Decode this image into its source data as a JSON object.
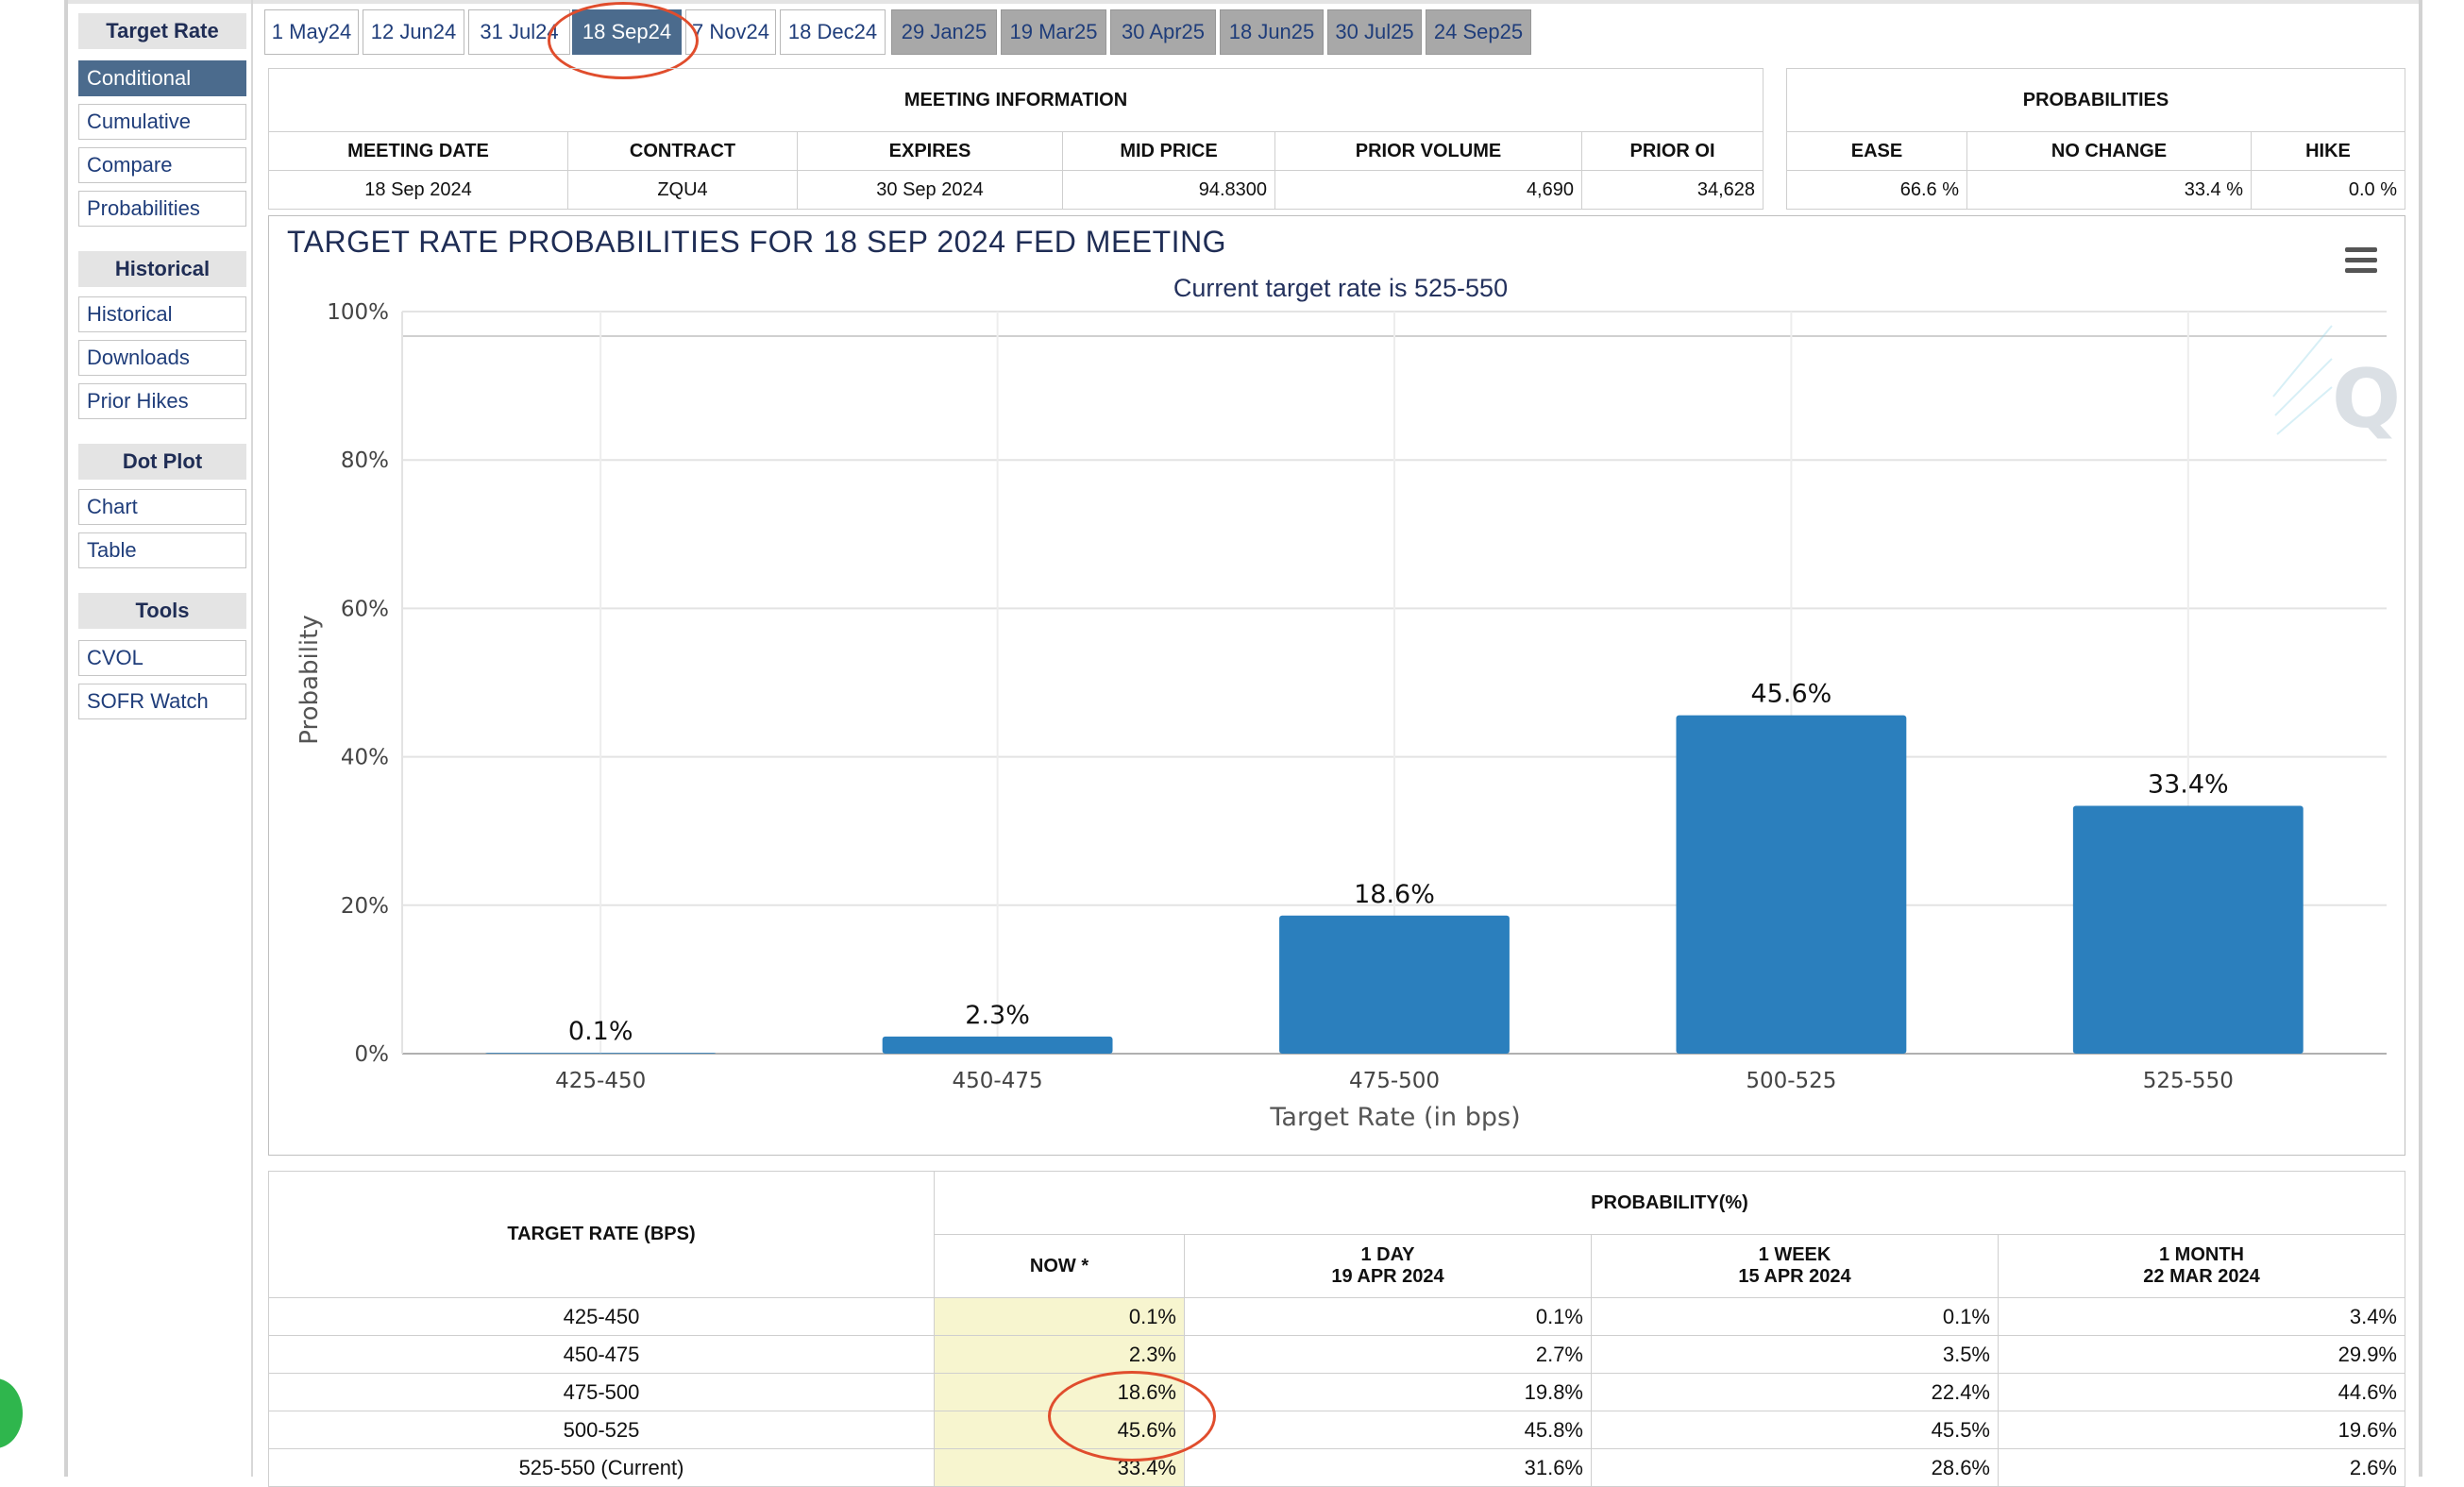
{
  "sidebar": {
    "sections": [
      {
        "title": "Target Rate",
        "items": [
          "Conditional",
          "Cumulative",
          "Compare",
          "Probabilities"
        ]
      },
      {
        "title": "Historical",
        "items": [
          "Historical",
          "Downloads",
          "Prior Hikes"
        ]
      },
      {
        "title": "Dot Plot",
        "items": [
          "Chart",
          "Table"
        ]
      },
      {
        "title": "Tools",
        "items": [
          "CVOL",
          "SOFR Watch"
        ]
      }
    ],
    "active_item": "Conditional"
  },
  "tabs": [
    "1 May24",
    "12 Jun24",
    "31 Jul24",
    "18 Sep24",
    "7 Nov24",
    "18 Dec24",
    "29 Jan25",
    "19 Mar25",
    "30 Apr25",
    "18 Jun25",
    "30 Jul25",
    "24 Sep25"
  ],
  "active_tab": "18 Sep24",
  "meeting_info": {
    "caption": "MEETING INFORMATION",
    "headers": [
      "MEETING DATE",
      "CONTRACT",
      "EXPIRES",
      "MID PRICE",
      "PRIOR VOLUME",
      "PRIOR OI"
    ],
    "values": [
      "18 Sep 2024",
      "ZQU4",
      "30 Sep 2024",
      "94.8300",
      "4,690",
      "34,628"
    ]
  },
  "probabilities_box": {
    "caption": "PROBABILITIES",
    "headers": [
      "EASE",
      "NO CHANGE",
      "HIKE"
    ],
    "values": [
      "66.6 %",
      "33.4 %",
      "0.0 %"
    ]
  },
  "chart_data": {
    "type": "bar",
    "title": "TARGET RATE PROBABILITIES FOR 18 SEP 2024 FED MEETING",
    "subtitle": "Current target rate is 525-550",
    "xlabel": "Target Rate (in bps)",
    "ylabel": "Probability",
    "categories": [
      "425-450",
      "450-475",
      "475-500",
      "500-525",
      "525-550"
    ],
    "values": [
      0.1,
      2.3,
      18.6,
      45.6,
      33.4
    ],
    "data_labels": [
      "0.1%",
      "2.3%",
      "18.6%",
      "45.6%",
      "33.4%"
    ],
    "ylim": [
      0,
      100
    ],
    "yticks": [
      "0%",
      "20%",
      "40%",
      "60%",
      "80%",
      "100%"
    ],
    "color": "#2b7fbd",
    "grid": true,
    "legend": "none"
  },
  "prob_table": {
    "col1_header": "TARGET RATE (BPS)",
    "group_header": "PROBABILITY(%)",
    "columns": [
      {
        "line1": "NOW *",
        "line2": ""
      },
      {
        "line1": "1 DAY",
        "line2": "19 APR 2024"
      },
      {
        "line1": "1 WEEK",
        "line2": "15 APR 2024"
      },
      {
        "line1": "1 MONTH",
        "line2": "22 MAR 2024"
      }
    ],
    "rows": [
      {
        "rate": "425-450",
        "vals": [
          "0.1%",
          "0.1%",
          "0.1%",
          "3.4%"
        ]
      },
      {
        "rate": "450-475",
        "vals": [
          "2.3%",
          "2.7%",
          "3.5%",
          "29.9%"
        ]
      },
      {
        "rate": "475-500",
        "vals": [
          "18.6%",
          "19.8%",
          "22.4%",
          "44.6%"
        ]
      },
      {
        "rate": "500-525",
        "vals": [
          "45.6%",
          "45.8%",
          "45.5%",
          "19.6%"
        ]
      },
      {
        "rate": "525-550 (Current)",
        "vals": [
          "33.4%",
          "31.6%",
          "28.6%",
          "2.6%"
        ]
      }
    ]
  },
  "colors": {
    "accent": "#4b6b8d",
    "bar": "#2b7fbd",
    "annotation": "#e04d2d",
    "now_column": "#f7f5cf"
  }
}
